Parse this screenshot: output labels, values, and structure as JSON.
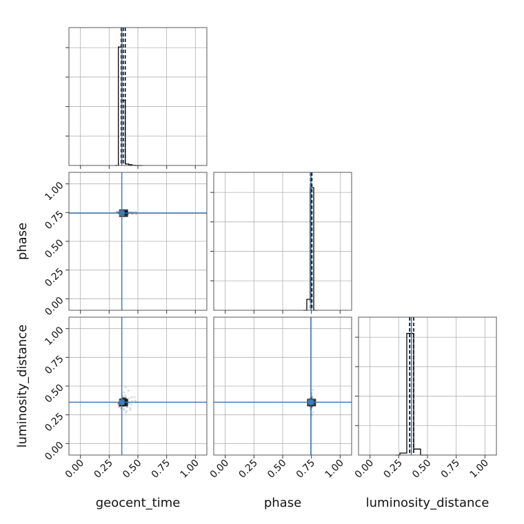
{
  "chart_data": {
    "type": "corner",
    "parameters": [
      "geocent_time",
      "phase",
      "luminosity_distance"
    ],
    "axis_labels": {
      "x": [
        "geocent_time",
        "phase",
        "luminosity_distance"
      ],
      "y": [
        "phase",
        "luminosity_distance"
      ]
    },
    "range": [
      -0.1,
      1.1
    ],
    "ticks": [
      0.0,
      0.25,
      0.5,
      0.75,
      1.0
    ],
    "tick_labels": [
      "0.00",
      "0.25",
      "0.50",
      "0.75",
      "1.00"
    ],
    "injection": {
      "geocent_time": 0.36,
      "phase": 0.745,
      "luminosity_distance": 0.36
    },
    "quantiles": {
      "geocent_time": [
        0.355,
        0.372,
        0.39
      ],
      "phase": [
        0.742,
        0.748,
        0.754
      ],
      "luminosity_distance": [
        0.345,
        0.36,
        0.38
      ]
    },
    "histograms": {
      "geocent_time": {
        "edges": [
          0.3,
          0.33,
          0.36,
          0.39,
          0.42,
          0.45,
          0.48,
          0.51,
          0.54
        ],
        "counts": [
          0,
          32.0,
          17.6,
          0.4,
          0.2,
          0.05,
          0,
          0
        ],
        "ymax": 35.0
      },
      "phase": {
        "edges": [
          0.68,
          0.71,
          0.74,
          0.77,
          0.8
        ],
        "counts": [
          0,
          2.2,
          24.6,
          0
        ],
        "ymax": 26.0
      },
      "luminosity_distance": {
        "edges": [
          0.22,
          0.26,
          0.32,
          0.38,
          0.44,
          0.5
        ],
        "counts": [
          0,
          0.4,
          24.4,
          1.2,
          0
        ],
        "ymax": 26.0
      }
    },
    "grid": true,
    "colors": {
      "injection": "#3f7cb8",
      "hist": "#000000",
      "quantile": "#000000",
      "grid": "#b0b0b0"
    }
  }
}
